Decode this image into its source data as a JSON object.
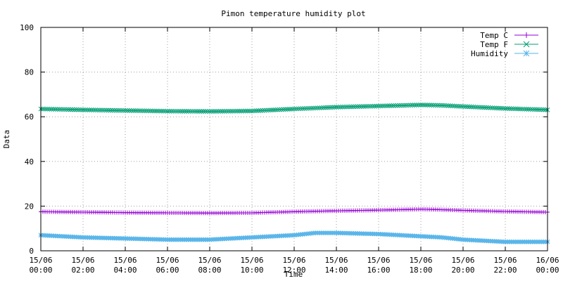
{
  "chart_data": {
    "type": "line",
    "title": "Pimon temperature   humidity plot",
    "xlabel": "Time",
    "ylabel": "Data",
    "ylim": [
      0,
      100
    ],
    "y_ticks": [
      0,
      20,
      40,
      60,
      80,
      100
    ],
    "xlim_hours": [
      0,
      24
    ],
    "x_ticks": [
      {
        "hour": 0,
        "date": "15/06",
        "time": "00:00"
      },
      {
        "hour": 2,
        "date": "15/06",
        "time": "02:00"
      },
      {
        "hour": 4,
        "date": "15/06",
        "time": "04:00"
      },
      {
        "hour": 6,
        "date": "15/06",
        "time": "06:00"
      },
      {
        "hour": 8,
        "date": "15/06",
        "time": "08:00"
      },
      {
        "hour": 10,
        "date": "15/06",
        "time": "10:00"
      },
      {
        "hour": 12,
        "date": "15/06",
        "time": "12:00"
      },
      {
        "hour": 14,
        "date": "15/06",
        "time": "14:00"
      },
      {
        "hour": 16,
        "date": "15/06",
        "time": "16:00"
      },
      {
        "hour": 18,
        "date": "15/06",
        "time": "18:00"
      },
      {
        "hour": 20,
        "date": "15/06",
        "time": "20:00"
      },
      {
        "hour": 22,
        "date": "15/06",
        "time": "22:00"
      },
      {
        "hour": 24,
        "date": "16/06",
        "time": "00:00"
      }
    ],
    "grid": true,
    "legend_position": "top-right",
    "x": [
      0,
      2,
      4,
      6,
      8,
      10,
      12,
      13,
      14,
      16,
      18,
      19,
      20,
      22,
      24
    ],
    "series": [
      {
        "name": "Temp C",
        "color": "#9400d3",
        "marker": "plus",
        "values": [
          17.5,
          17.3,
          17.1,
          17.0,
          16.9,
          17.0,
          17.5,
          17.7,
          17.9,
          18.2,
          18.6,
          18.4,
          18.1,
          17.6,
          17.3
        ]
      },
      {
        "name": "Temp F",
        "color": "#009e73",
        "marker": "x",
        "values": [
          63.5,
          63.1,
          62.8,
          62.5,
          62.4,
          62.6,
          63.5,
          63.9,
          64.3,
          64.8,
          65.3,
          65.1,
          64.6,
          63.7,
          63.1
        ]
      },
      {
        "name": "Humidity",
        "color": "#56b4e9",
        "marker": "star",
        "values": [
          7.0,
          6.0,
          5.5,
          5.0,
          5.0,
          6.0,
          7.0,
          8.0,
          8.0,
          7.5,
          6.5,
          6.0,
          5.0,
          4.0,
          4.0
        ]
      }
    ]
  }
}
